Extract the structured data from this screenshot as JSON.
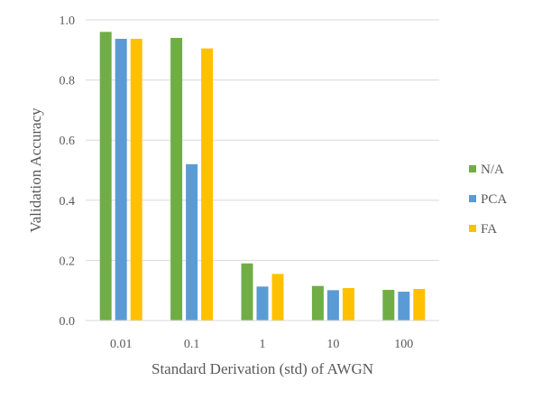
{
  "chart_data": {
    "type": "bar",
    "title": "",
    "xlabel": "Standard Derivation (std) of AWGN",
    "ylabel": "Validation Accuracy",
    "categories": [
      "0.01",
      "0.1",
      "1",
      "10",
      "100"
    ],
    "series": [
      {
        "name": "N/A",
        "color": "#70AD47",
        "values": [
          0.96,
          0.94,
          0.19,
          0.115,
          0.102
        ]
      },
      {
        "name": "PCA",
        "color": "#5B9BD5",
        "values": [
          0.937,
          0.52,
          0.113,
          0.101,
          0.096
        ]
      },
      {
        "name": "FA",
        "color": "#FFC000",
        "values": [
          0.937,
          0.905,
          0.155,
          0.108,
          0.105
        ]
      }
    ],
    "ylim": [
      0,
      1
    ],
    "yticks": [
      "0.0",
      "0.2",
      "0.4",
      "0.6",
      "0.8",
      "1.0"
    ],
    "ytick_values": [
      0,
      0.2,
      0.4,
      0.6,
      0.8,
      1.0
    ],
    "grid": true,
    "legend_position": "right"
  }
}
